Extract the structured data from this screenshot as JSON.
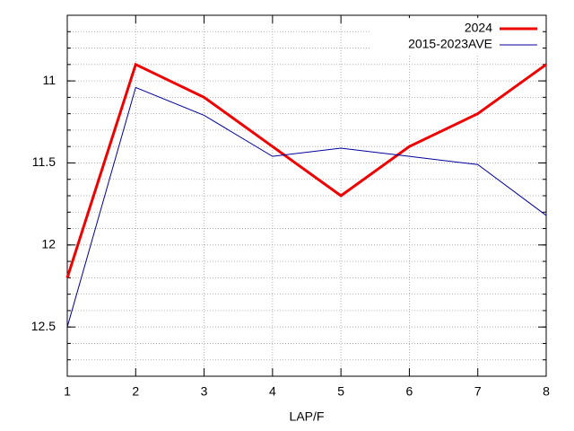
{
  "chart_data": {
    "type": "line",
    "x_label": "LAP/F",
    "x": [
      1,
      2,
      3,
      4,
      5,
      6,
      7,
      8
    ],
    "series": [
      {
        "name": "2024",
        "color": "#ee0000",
        "values": [
          12.2,
          10.9,
          11.1,
          11.4,
          11.7,
          11.4,
          11.2,
          10.9
        ]
      },
      {
        "name": "2015-2023AVE",
        "color": "#000099",
        "values": [
          12.5,
          11.04,
          11.21,
          11.46,
          11.41,
          11.46,
          11.51,
          11.82
        ]
      }
    ],
    "xlim": [
      1,
      8
    ],
    "xticks": [
      1,
      2,
      3,
      4,
      5,
      6,
      7,
      8
    ],
    "ylim": [
      10.6,
      12.8
    ],
    "yticks": [
      11,
      11.5,
      12,
      12.5
    ],
    "y_reversed": true,
    "y_minor_step": 0.1,
    "grid": true,
    "legend": "top-right"
  }
}
